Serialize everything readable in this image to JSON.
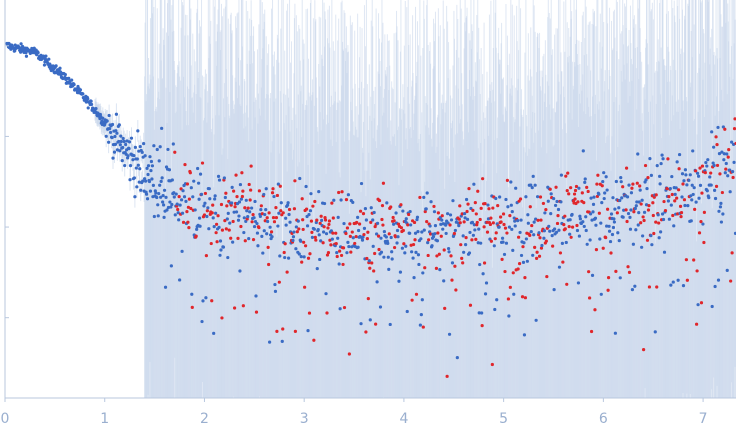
{
  "chart_data": {
    "type": "scatter",
    "title": "",
    "xlabel": "",
    "ylabel": "",
    "y_scale": "log",
    "x_ticks": [
      "0",
      "1",
      "2",
      "3",
      "4",
      "5",
      "6",
      "7"
    ],
    "x_tick_values": [
      0,
      1,
      2,
      3,
      4,
      5,
      6,
      7
    ],
    "xlim": [
      0,
      7.33
    ],
    "y_tick_values": [
      1,
      0.1,
      0.01,
      0.001
    ],
    "ylim": [
      0.00013,
      3.2
    ],
    "grid": false,
    "legend": "none",
    "colors": {
      "points_primary": "#3a6bc4",
      "points_secondary": "#e0262b",
      "error_bars": "#c5d3ea",
      "axis": "#b8c7de",
      "tick_labels": "#9aafcf"
    },
    "trend": {
      "description_points": [
        {
          "x": 0.02,
          "y": 1.0
        },
        {
          "x": 0.3,
          "y": 0.85
        },
        {
          "x": 0.6,
          "y": 0.45
        },
        {
          "x": 0.9,
          "y": 0.2
        },
        {
          "x": 1.2,
          "y": 0.07
        },
        {
          "x": 1.5,
          "y": 0.03
        },
        {
          "x": 2.0,
          "y": 0.015
        },
        {
          "x": 3.0,
          "y": 0.01
        },
        {
          "x": 4.0,
          "y": 0.009
        },
        {
          "x": 5.0,
          "y": 0.011
        },
        {
          "x": 6.0,
          "y": 0.015
        },
        {
          "x": 7.0,
          "y": 0.03
        },
        {
          "x": 7.33,
          "y": 0.07
        }
      ]
    }
  }
}
